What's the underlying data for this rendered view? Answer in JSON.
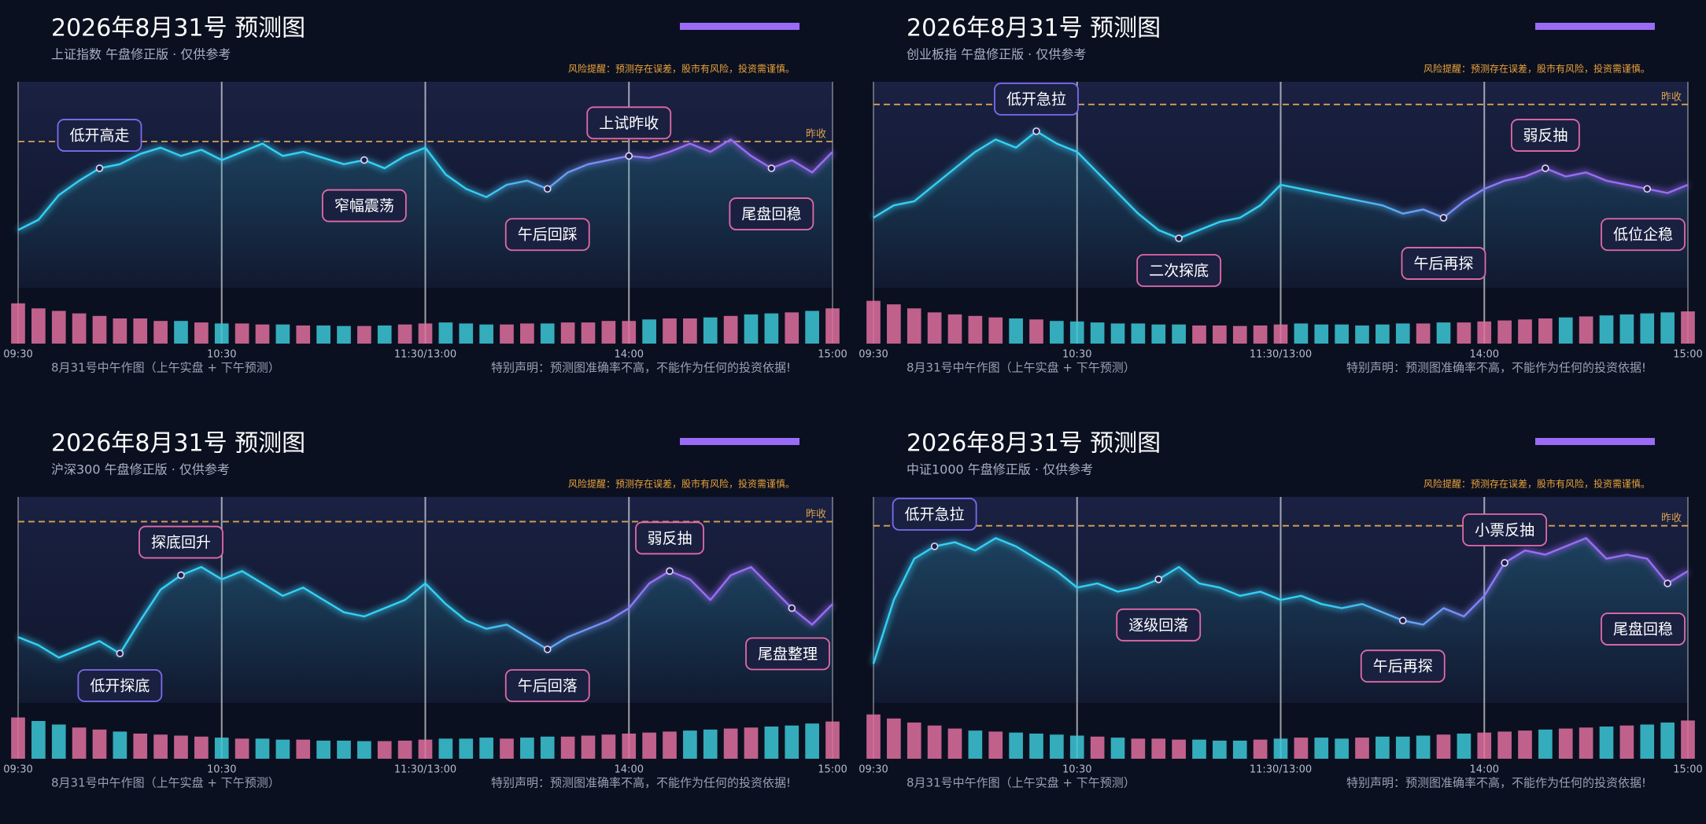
{
  "chart_data": [
    {
      "type": "line",
      "title": "2026年8月31号 预测图",
      "subtitle": "上证指数 午盘修正版 · 仅供参考",
      "risk_note": "风险提醒：预测存在误差，股市有风险，投资需谨慎。",
      "reference": {
        "value": 71,
        "label": "昨收"
      },
      "x": [
        0,
        6,
        12,
        18,
        24,
        30,
        36,
        42,
        48,
        54,
        60,
        66,
        72,
        78,
        84,
        90,
        96,
        102,
        108,
        114,
        120,
        126,
        132,
        138,
        144,
        150,
        156,
        162,
        168,
        174,
        180,
        186,
        192,
        198,
        204,
        210,
        216,
        222,
        228,
        234,
        240
      ],
      "xlim": [
        0,
        240
      ],
      "xticks": [
        {
          "value": 0,
          "label": "09:30"
        },
        {
          "value": 60,
          "label": "10:30"
        },
        {
          "value": 120,
          "label": "11:30/13:00"
        },
        {
          "value": 180,
          "label": "14:00"
        },
        {
          "value": 240,
          "label": "15:00"
        }
      ],
      "ylim": [
        0,
        100
      ],
      "colors": [
        "#35d0f5",
        "#9a6cf5"
      ],
      "values": [
        28,
        33,
        45,
        52,
        58,
        60,
        65,
        68,
        64,
        67,
        62,
        66,
        70,
        64,
        66,
        63,
        60,
        62,
        58,
        64,
        68,
        55,
        48,
        44,
        50,
        52,
        48,
        56,
        60,
        62,
        64,
        63,
        66,
        70,
        66,
        72,
        64,
        58,
        62,
        56,
        66
      ],
      "annotations": [
        {
          "text": "低开高走",
          "at": 4,
          "position": "above",
          "color": "#7b6cf0"
        },
        {
          "text": "窄幅震荡",
          "at": 17,
          "position": "below",
          "color": "#e26aa8"
        },
        {
          "text": "午后回踩",
          "at": 26,
          "position": "below",
          "color": "#e26aa8"
        },
        {
          "text": "上试昨收",
          "at": 30,
          "position": "above",
          "color": "#e26aa8"
        },
        {
          "text": "尾盘回稳",
          "at": 37,
          "position": "below",
          "color": "#e26aa8"
        }
      ],
      "volume": {
        "values": [
          80,
          70,
          65,
          60,
          55,
          50,
          50,
          45,
          45,
          42,
          40,
          40,
          38,
          38,
          36,
          36,
          35,
          35,
          36,
          38,
          40,
          42,
          40,
          38,
          38,
          40,
          40,
          42,
          42,
          45,
          45,
          48,
          50,
          50,
          52,
          55,
          58,
          60,
          62,
          65,
          70
        ],
        "ylim": [
          0,
          100
        ],
        "up_color": "#e070a0",
        "down_color": "#3cc8d8"
      },
      "footer_left": "8月31号中午作图（上午实盘 + 下午预测）",
      "footer_right": "特别声明：预测图准确率不高，不能作为任何的投资依据!"
    },
    {
      "type": "line",
      "title": "2026年8月31号 预测图",
      "subtitle": "创业板指 午盘修正版 · 仅供参考",
      "risk_note": "风险提醒：预测存在误差，股市有风险，投资需谨慎。",
      "reference": {
        "value": 89,
        "label": "昨收"
      },
      "x": [
        0,
        6,
        12,
        18,
        24,
        30,
        36,
        42,
        48,
        54,
        60,
        66,
        72,
        78,
        84,
        90,
        96,
        102,
        108,
        114,
        120,
        126,
        132,
        138,
        144,
        150,
        156,
        162,
        168,
        174,
        180,
        186,
        192,
        198,
        204,
        210,
        216,
        222,
        228,
        234,
        240
      ],
      "xlim": [
        0,
        240
      ],
      "xticks": [
        {
          "value": 0,
          "label": "09:30"
        },
        {
          "value": 60,
          "label": "10:30"
        },
        {
          "value": 120,
          "label": "11:30/13:00"
        },
        {
          "value": 180,
          "label": "14:00"
        },
        {
          "value": 240,
          "label": "15:00"
        }
      ],
      "ylim": [
        0,
        100
      ],
      "colors": [
        "#35d0f5",
        "#9a6cf5"
      ],
      "values": [
        34,
        40,
        42,
        50,
        58,
        66,
        72,
        68,
        76,
        70,
        66,
        56,
        46,
        36,
        28,
        24,
        28,
        32,
        34,
        40,
        50,
        48,
        46,
        44,
        42,
        40,
        36,
        38,
        34,
        42,
        48,
        52,
        54,
        58,
        54,
        56,
        52,
        50,
        48,
        46,
        50
      ],
      "annotations": [
        {
          "text": "低开急拉",
          "at": 8,
          "position": "above",
          "color": "#7b6cf0"
        },
        {
          "text": "二次探底",
          "at": 15,
          "position": "below",
          "color": "#e26aa8"
        },
        {
          "text": "午后再探",
          "at": 28,
          "position": "below",
          "color": "#e26aa8"
        },
        {
          "text": "弱反抽",
          "at": 33,
          "position": "above",
          "color": "#e26aa8"
        },
        {
          "text": "低位企稳",
          "at": 38,
          "position": "below",
          "color": "#e26aa8"
        }
      ],
      "volume": {
        "values": [
          85,
          78,
          70,
          62,
          58,
          55,
          52,
          50,
          48,
          45,
          44,
          42,
          40,
          40,
          38,
          38,
          36,
          36,
          35,
          36,
          38,
          40,
          38,
          38,
          36,
          38,
          40,
          40,
          42,
          42,
          44,
          46,
          48,
          50,
          52,
          54,
          56,
          58,
          60,
          62,
          64
        ],
        "ylim": [
          0,
          100
        ],
        "up_color": "#e070a0",
        "down_color": "#3cc8d8"
      },
      "footer_left": "8月31号中午作图（上午实盘 + 下午预测）",
      "footer_right": "特别声明：预测图准确率不高，不能作为任何的投资依据!"
    },
    {
      "type": "line",
      "title": "2026年8月31号 预测图",
      "subtitle": "沪深300 午盘修正版 · 仅供参考",
      "risk_note": "风险提醒：预测存在误差，股市有风险，投资需谨慎。",
      "reference": {
        "value": 88,
        "label": "昨收"
      },
      "x": [
        0,
        6,
        12,
        18,
        24,
        30,
        36,
        42,
        48,
        54,
        60,
        66,
        72,
        78,
        84,
        90,
        96,
        102,
        108,
        114,
        120,
        126,
        132,
        138,
        144,
        150,
        156,
        162,
        168,
        174,
        180,
        186,
        192,
        198,
        204,
        210,
        216,
        222,
        228,
        234,
        240
      ],
      "xlim": [
        0,
        240
      ],
      "xticks": [
        {
          "value": 0,
          "label": "09:30"
        },
        {
          "value": 60,
          "label": "10:30"
        },
        {
          "value": 120,
          "label": "11:30/13:00"
        },
        {
          "value": 180,
          "label": "14:00"
        },
        {
          "value": 240,
          "label": "15:00"
        }
      ],
      "ylim": [
        0,
        100
      ],
      "colors": [
        "#35d0f5",
        "#9a6cf5"
      ],
      "values": [
        32,
        28,
        22,
        26,
        30,
        24,
        40,
        55,
        62,
        66,
        60,
        64,
        58,
        52,
        56,
        50,
        44,
        42,
        46,
        50,
        58,
        48,
        40,
        36,
        38,
        32,
        26,
        32,
        36,
        40,
        46,
        58,
        64,
        60,
        50,
        62,
        66,
        56,
        46,
        38,
        48
      ],
      "annotations": [
        {
          "text": "低开探底",
          "at": 5,
          "position": "below",
          "color": "#7b6cf0"
        },
        {
          "text": "探底回升",
          "at": 8,
          "position": "above",
          "color": "#e26aa8"
        },
        {
          "text": "午后回落",
          "at": 26,
          "position": "below",
          "color": "#e26aa8"
        },
        {
          "text": "弱反抽",
          "at": 32,
          "position": "above",
          "color": "#e26aa8"
        },
        {
          "text": "尾盘整理",
          "at": 38,
          "position": "below",
          "color": "#e26aa8"
        }
      ],
      "volume": {
        "values": [
          82,
          75,
          68,
          62,
          58,
          54,
          50,
          48,
          46,
          44,
          42,
          40,
          40,
          38,
          38,
          36,
          36,
          35,
          35,
          36,
          38,
          40,
          40,
          42,
          40,
          42,
          44,
          44,
          46,
          48,
          50,
          52,
          54,
          56,
          58,
          60,
          62,
          64,
          66,
          70,
          74
        ],
        "ylim": [
          0,
          100
        ],
        "up_color": "#e070a0",
        "down_color": "#3cc8d8"
      },
      "footer_left": "8月31号中午作图（上午实盘 + 下午预测）",
      "footer_right": "特别声明：预测图准确率不高，不能作为任何的投资依据!"
    },
    {
      "type": "line",
      "title": "2026年8月31号 预测图",
      "subtitle": "中证1000 午盘修正版 · 仅供参考",
      "risk_note": "风险提醒：预测存在误差，股市有风险，投资需谨慎。",
      "reference": {
        "value": 86,
        "label": "昨收"
      },
      "x": [
        0,
        6,
        12,
        18,
        24,
        30,
        36,
        42,
        48,
        54,
        60,
        66,
        72,
        78,
        84,
        90,
        96,
        102,
        108,
        114,
        120,
        126,
        132,
        138,
        144,
        150,
        156,
        162,
        168,
        174,
        180,
        186,
        192,
        198,
        204,
        210,
        216,
        222,
        228,
        234,
        240
      ],
      "xlim": [
        0,
        240
      ],
      "xticks": [
        {
          "value": 0,
          "label": "09:30"
        },
        {
          "value": 60,
          "label": "10:30"
        },
        {
          "value": 120,
          "label": "11:30/13:00"
        },
        {
          "value": 180,
          "label": "14:00"
        },
        {
          "value": 240,
          "label": "15:00"
        }
      ],
      "ylim": [
        0,
        100
      ],
      "colors": [
        "#35d0f5",
        "#9a6cf5"
      ],
      "values": [
        19,
        50,
        70,
        76,
        78,
        74,
        80,
        76,
        70,
        64,
        56,
        58,
        54,
        56,
        60,
        66,
        58,
        56,
        52,
        54,
        50,
        52,
        48,
        46,
        48,
        44,
        40,
        38,
        46,
        42,
        52,
        68,
        74,
        72,
        76,
        80,
        70,
        72,
        70,
        58,
        64
      ],
      "annotations": [
        {
          "text": "低开急拉",
          "at": 3,
          "position": "above",
          "color": "#7b6cf0"
        },
        {
          "text": "逐级回落",
          "at": 14,
          "position": "below",
          "color": "#e26aa8"
        },
        {
          "text": "午后再探",
          "at": 26,
          "position": "below",
          "color": "#e26aa8"
        },
        {
          "text": "小票反抽",
          "at": 31,
          "position": "above",
          "color": "#e26aa8"
        },
        {
          "text": "尾盘回稳",
          "at": 39,
          "position": "below",
          "color": "#e26aa8"
        }
      ],
      "volume": {
        "values": [
          88,
          80,
          72,
          66,
          60,
          56,
          54,
          52,
          50,
          48,
          46,
          44,
          42,
          40,
          40,
          38,
          38,
          36,
          36,
          38,
          40,
          42,
          42,
          40,
          42,
          44,
          44,
          46,
          48,
          50,
          52,
          54,
          56,
          58,
          60,
          62,
          64,
          66,
          68,
          72,
          76
        ],
        "ylim": [
          0,
          100
        ],
        "up_color": "#e070a0",
        "down_color": "#3cc8d8"
      },
      "footer_left": "8月31号中午作图（上午实盘 + 下午预测）",
      "footer_right": "特别声明：预测图准确率不高，不能作为任何的投资依据!"
    }
  ]
}
